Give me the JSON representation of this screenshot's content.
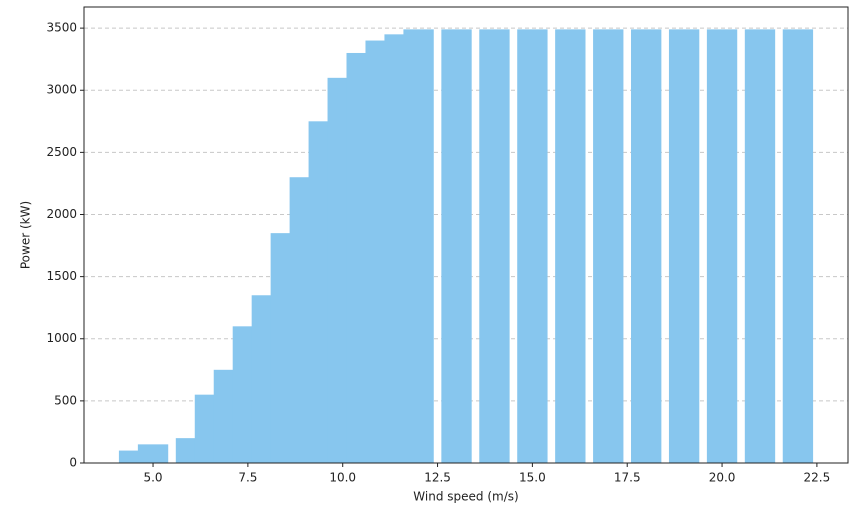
{
  "chart_data": {
    "type": "bar",
    "x": [
      4.5,
      5.0,
      6.0,
      6.5,
      7.0,
      7.5,
      8.0,
      8.5,
      9.0,
      9.5,
      10.0,
      10.5,
      11.0,
      11.5,
      12.0,
      13.0,
      14.0,
      15.0,
      16.0,
      17.0,
      18.0,
      19.0,
      20.0,
      21.0,
      22.0
    ],
    "values": [
      100,
      150,
      200,
      550,
      750,
      1100,
      1350,
      1850,
      2300,
      2750,
      3100,
      3300,
      3400,
      3450,
      3490,
      3490,
      3490,
      3490,
      3490,
      3490,
      3490,
      3490,
      3490,
      3490,
      3490
    ],
    "bar_width": 0.8,
    "color": "#87c6ee",
    "xlabel": "Wind speed (m/s)",
    "ylabel": "Power (kW)",
    "xlim": [
      3.18,
      23.32
    ],
    "ylim": [
      0,
      3670
    ],
    "xticks": [
      {
        "value": 5,
        "label": "5.0"
      },
      {
        "value": 7.5,
        "label": "7.5"
      },
      {
        "value": 10,
        "label": "10.0"
      },
      {
        "value": 12.5,
        "label": "12.5"
      },
      {
        "value": 15,
        "label": "15.0"
      },
      {
        "value": 17.5,
        "label": "17.5"
      },
      {
        "value": 20,
        "label": "20.0"
      },
      {
        "value": 22.5,
        "label": "22.5"
      }
    ],
    "yticks": [
      0,
      500,
      1000,
      1500,
      2000,
      2500,
      3000,
      3500
    ],
    "grid": true
  }
}
